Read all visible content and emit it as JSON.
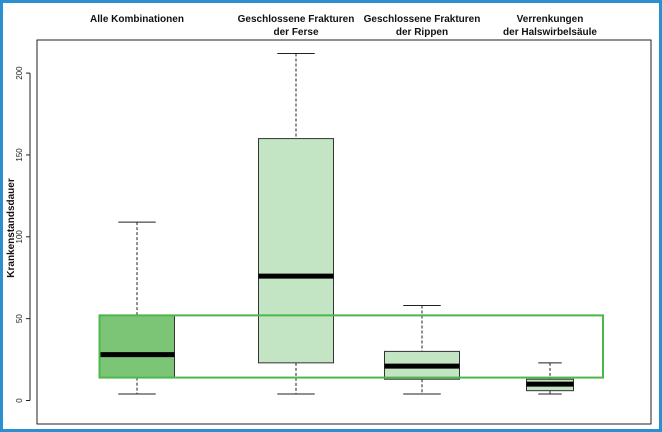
{
  "chart_data": {
    "type": "box",
    "title": "",
    "xlabel": "",
    "ylabel": "Krankenstandsdauer",
    "ylim": [
      -5,
      220
    ],
    "yticks": [
      "0",
      "50",
      "100",
      "150",
      "200"
    ],
    "ytick_values": [
      0,
      50,
      100,
      150,
      200
    ],
    "categories": [
      [
        "Alle Kombinationen"
      ],
      [
        "Geschlossene Frakturen",
        "der Ferse"
      ],
      [
        "Geschlossene Frakturen",
        "der Rippen"
      ],
      [
        "Verrenkungen",
        "der Halswirbelsäule"
      ]
    ],
    "boxes": [
      {
        "whisker_low": 4,
        "q1": 14,
        "median": 28,
        "q3": 52,
        "whisker_high": 109,
        "fill": "#7cc576"
      },
      {
        "whisker_low": 4,
        "q1": 23,
        "median": 76,
        "q3": 160,
        "whisker_high": 212,
        "fill": "#c3e5c3"
      },
      {
        "whisker_low": 4,
        "q1": 13,
        "median": 21,
        "q3": 30,
        "whisker_high": 58,
        "fill": "#c3e5c3"
      },
      {
        "whisker_low": 4,
        "q1": 6,
        "median": 10,
        "q3": 13,
        "whisker_high": 23,
        "fill": "#c3e5c3"
      }
    ],
    "reference_band": {
      "low": 14,
      "high": 52,
      "color": "#4cb84c"
    },
    "grid": false,
    "legend": "none"
  }
}
